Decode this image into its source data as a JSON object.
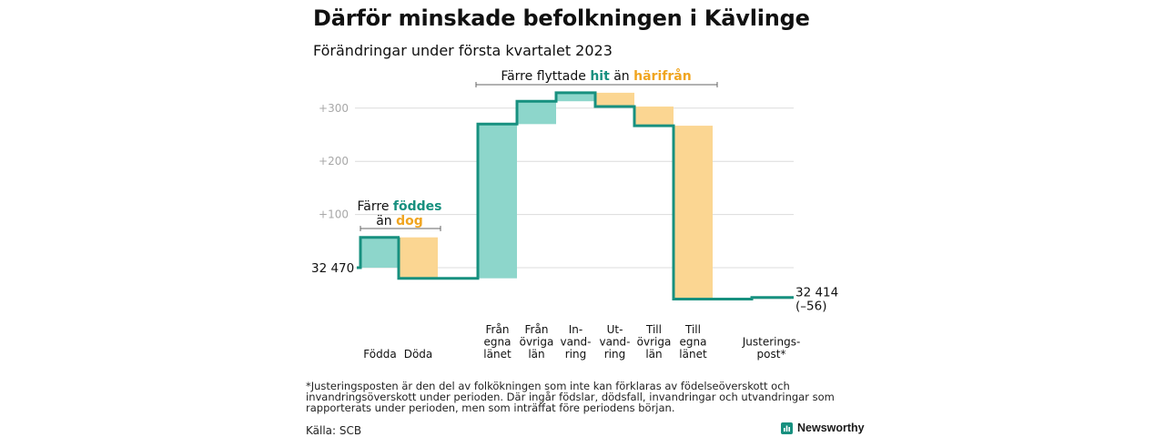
{
  "title": "Därför minskade befolkningen i Kävlinge",
  "subtitle": "Förändringar under första kvartalet 2023",
  "chart_data": {
    "type": "waterfall",
    "start_value": 32470,
    "start_label": "32 470",
    "end_value": 32414,
    "end_label_value": "32 414",
    "end_label_change": "(–56)",
    "y_ticks": [
      100,
      200,
      300
    ],
    "y_tick_labels": [
      "+100",
      "+200",
      "+300"
    ],
    "grid": true,
    "colors": {
      "positive": "#8dd6cb",
      "negative": "#fbd692",
      "adjustment": "#c4c4c4",
      "step_line": "#17907f",
      "teal_text": "#17907f",
      "orange_text": "#f0a520"
    },
    "steps": [
      {
        "name": "Födda",
        "label_lines": [
          "Födda"
        ],
        "value": 57,
        "kind": "positive"
      },
      {
        "name": "Döda",
        "label_lines": [
          "Döda"
        ],
        "value": -77,
        "kind": "negative"
      },
      {
        "name": "Från egna länet",
        "label_lines": [
          "Från",
          "egna",
          "länet"
        ],
        "value": 290,
        "kind": "positive"
      },
      {
        "name": "Från övriga län",
        "label_lines": [
          "Från",
          "övriga",
          "län"
        ],
        "value": 43,
        "kind": "positive"
      },
      {
        "name": "Invandring",
        "label_lines": [
          "In-",
          "vand-",
          "ring"
        ],
        "value": 16,
        "kind": "positive"
      },
      {
        "name": "Utvandring",
        "label_lines": [
          "Ut-",
          "vand-",
          "ring"
        ],
        "value": -26,
        "kind": "negative"
      },
      {
        "name": "Till övriga län",
        "label_lines": [
          "Till",
          "övriga",
          "län"
        ],
        "value": -36,
        "kind": "negative"
      },
      {
        "name": "Till egna länet",
        "label_lines": [
          "Till",
          "egna",
          "länet"
        ],
        "value": -326,
        "kind": "negative"
      },
      {
        "name": "Justeringspost*",
        "label_lines": [
          "Justerings-",
          "post*"
        ],
        "value": 3,
        "kind": "adjustment"
      }
    ],
    "annotations": [
      {
        "from_step": 0,
        "to_step": 1,
        "line1": "Färre",
        "word_teal": "föddes",
        "line2": "än",
        "word_orange": "dog"
      },
      {
        "from_step": 2,
        "to_step": 7,
        "line1": "Färre flyttade",
        "word_teal": "hit",
        "mid": "än",
        "word_orange": "härifrån"
      }
    ]
  },
  "footnote": "*Justeringsposten är den del av folkökningen som inte kan förklaras av födelseöverskott och invandringsöverskott under perioden. Där ingår födslar, dödsfall, invandringar och utvandringar som rapporterats under perioden, men som inträffat före periodens början.",
  "source": "Källa: SCB",
  "brand": {
    "name": "Newsworthy",
    "icon": "bar-chart-logo-icon",
    "color": "#17907f"
  }
}
